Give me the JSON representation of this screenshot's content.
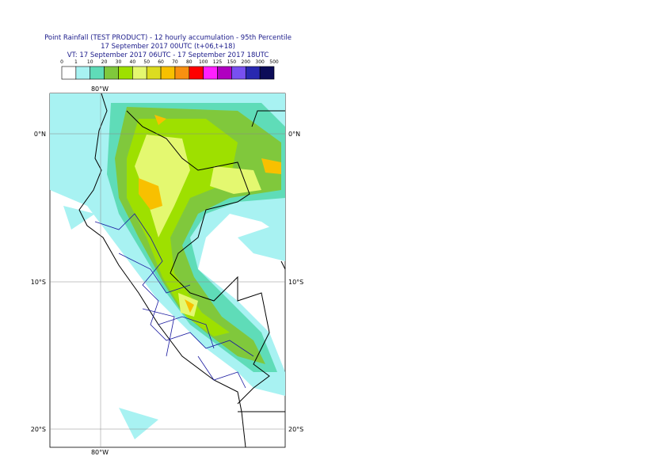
{
  "header": {
    "lines": [
      "Point Rainfall (TEST PRODUCT) - 12 hourly accumulation - 95th Percentile",
      "17 September 2017 00UTC (t+06,t+18)",
      "VT: 17 September 2017 06UTC - 17 September 2017 18UTC"
    ]
  },
  "legend": {
    "labels": [
      "0",
      "1",
      "10",
      "20",
      "30",
      "40",
      "50",
      "60",
      "70",
      "80",
      "100",
      "125",
      "150",
      "200",
      "300",
      "500"
    ],
    "colors": [
      "#ffffff",
      "#a8f2f2",
      "#5fdcb8",
      "#80c83c",
      "#9ee000",
      "#e4f870",
      "#dcdc20",
      "#f8c000",
      "#f89010",
      "#ff0000",
      "#ff20ff",
      "#b000c0",
      "#7850f0",
      "#2828b0",
      "#0c0c58"
    ]
  },
  "map": {
    "lon_label": "80°W",
    "lat_labels": [
      "0°N",
      "10°S",
      "20°S"
    ]
  }
}
